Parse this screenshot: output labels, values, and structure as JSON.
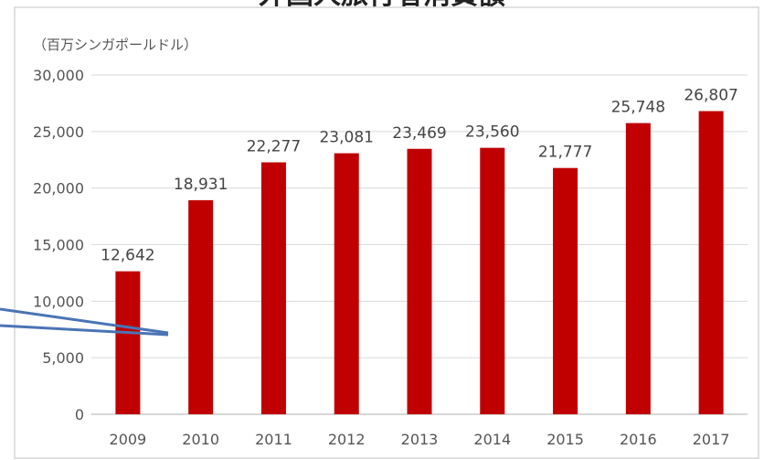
{
  "chart_data": {
    "type": "bar",
    "title": "外国人旅行者消費額",
    "unit_label": "（百万シンガポールドル）",
    "categories": [
      "2009",
      "2010",
      "2011",
      "2012",
      "2013",
      "2014",
      "2015",
      "2016",
      "2017"
    ],
    "values": [
      12642,
      18931,
      22277,
      23081,
      23469,
      23560,
      21777,
      25748,
      26807
    ],
    "data_labels": [
      "12,642",
      "18,931",
      "22,277",
      "23,081",
      "23,469",
      "23,560",
      "21,777",
      "25,748",
      "26,807"
    ],
    "yticks": [
      "0",
      "5,000",
      "10,000",
      "15,000",
      "20,000",
      "25,000",
      "30,000"
    ],
    "ylim": [
      0,
      30000
    ],
    "bar_color": "#c00000",
    "grid": true,
    "legend": "none"
  }
}
